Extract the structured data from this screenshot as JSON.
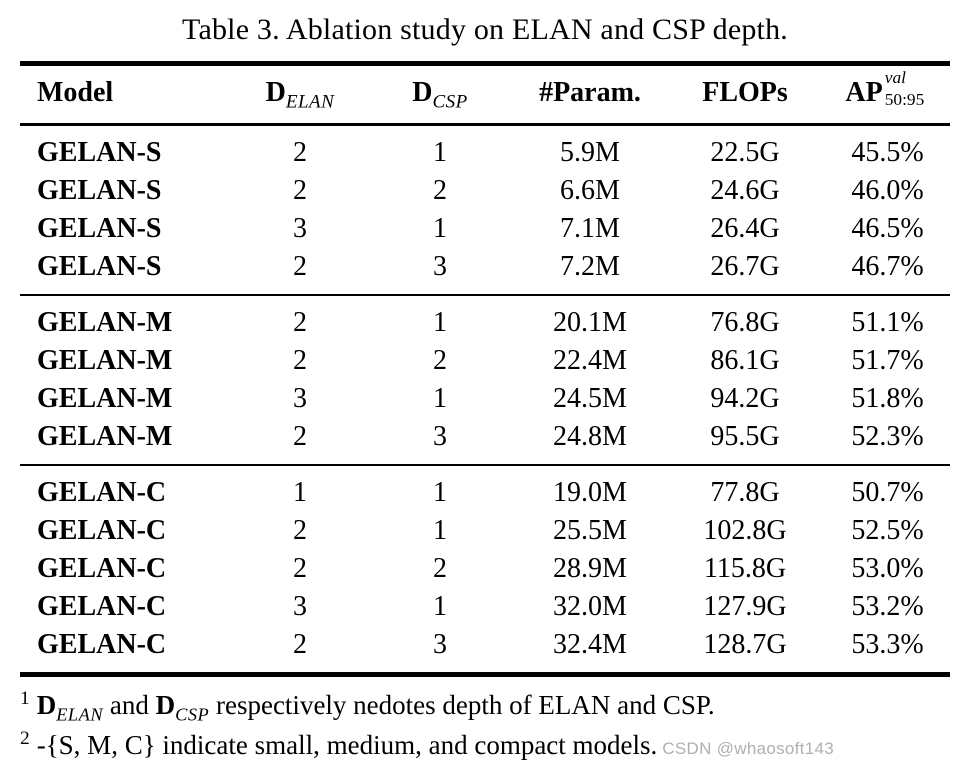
{
  "caption": "Table 3. Ablation study on ELAN and CSP depth.",
  "table": {
    "columns": {
      "model": "Model",
      "d_elan": {
        "base": "D",
        "sub": "ELAN"
      },
      "d_csp": {
        "base": "D",
        "sub": "CSP"
      },
      "params": "#Param.",
      "flops": "FLOPs",
      "ap": {
        "base": "AP",
        "sup": "val",
        "sub": "50:95"
      }
    },
    "groups": [
      {
        "rows": [
          [
            "GELAN-S",
            "2",
            "1",
            "5.9M",
            "22.5G",
            "45.5%"
          ],
          [
            "GELAN-S",
            "2",
            "2",
            "6.6M",
            "24.6G",
            "46.0%"
          ],
          [
            "GELAN-S",
            "3",
            "1",
            "7.1M",
            "26.4G",
            "46.5%"
          ],
          [
            "GELAN-S",
            "2",
            "3",
            "7.2M",
            "26.7G",
            "46.7%"
          ]
        ]
      },
      {
        "rows": [
          [
            "GELAN-M",
            "2",
            "1",
            "20.1M",
            "76.8G",
            "51.1%"
          ],
          [
            "GELAN-M",
            "2",
            "2",
            "22.4M",
            "86.1G",
            "51.7%"
          ],
          [
            "GELAN-M",
            "3",
            "1",
            "24.5M",
            "94.2G",
            "51.8%"
          ],
          [
            "GELAN-M",
            "2",
            "3",
            "24.8M",
            "95.5G",
            "52.3%"
          ]
        ]
      },
      {
        "rows": [
          [
            "GELAN-C",
            "1",
            "1",
            "19.0M",
            "77.8G",
            "50.7%"
          ],
          [
            "GELAN-C",
            "2",
            "1",
            "25.5M",
            "102.8G",
            "52.5%"
          ],
          [
            "GELAN-C",
            "2",
            "2",
            "28.9M",
            "115.8G",
            "53.0%"
          ],
          [
            "GELAN-C",
            "3",
            "1",
            "32.0M",
            "127.9G",
            "53.2%"
          ],
          [
            "GELAN-C",
            "2",
            "3",
            "32.4M",
            "128.7G",
            "53.3%"
          ]
        ]
      }
    ]
  },
  "footnotes": {
    "f1": {
      "marker": "1",
      "d_elan": {
        "base": "D",
        "sub": "ELAN"
      },
      "mid": " and ",
      "d_csp": {
        "base": "D",
        "sub": "CSP"
      },
      "rest": " respectively nedotes depth of ELAN and CSP."
    },
    "f2": {
      "marker": "2",
      "text": "-{S, M, C} indicate small, medium, and compact models."
    }
  },
  "watermark": "CSDN @whaosoft143",
  "colors": {
    "text": "#000000",
    "background": "#ffffff",
    "watermark": "#b0b0b0"
  }
}
